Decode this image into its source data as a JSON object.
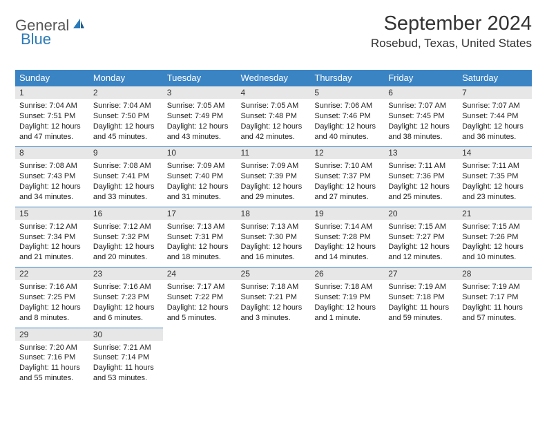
{
  "logo": {
    "general": "General",
    "blue": "Blue"
  },
  "title": "September 2024",
  "location": "Rosebud, Texas, United States",
  "day_headers": [
    "Sunday",
    "Monday",
    "Tuesday",
    "Wednesday",
    "Thursday",
    "Friday",
    "Saturday"
  ],
  "colors": {
    "header_bg": "#3b84c4",
    "header_text": "#ffffff",
    "daybar_bg": "#e7e7e7",
    "daybar_border": "#3b84c4",
    "logo_blue": "#2a7ab8",
    "logo_gray": "#555555"
  },
  "days": [
    {
      "num": "1",
      "sunrise": "Sunrise: 7:04 AM",
      "sunset": "Sunset: 7:51 PM",
      "daylight": "Daylight: 12 hours and 47 minutes."
    },
    {
      "num": "2",
      "sunrise": "Sunrise: 7:04 AM",
      "sunset": "Sunset: 7:50 PM",
      "daylight": "Daylight: 12 hours and 45 minutes."
    },
    {
      "num": "3",
      "sunrise": "Sunrise: 7:05 AM",
      "sunset": "Sunset: 7:49 PM",
      "daylight": "Daylight: 12 hours and 43 minutes."
    },
    {
      "num": "4",
      "sunrise": "Sunrise: 7:05 AM",
      "sunset": "Sunset: 7:48 PM",
      "daylight": "Daylight: 12 hours and 42 minutes."
    },
    {
      "num": "5",
      "sunrise": "Sunrise: 7:06 AM",
      "sunset": "Sunset: 7:46 PM",
      "daylight": "Daylight: 12 hours and 40 minutes."
    },
    {
      "num": "6",
      "sunrise": "Sunrise: 7:07 AM",
      "sunset": "Sunset: 7:45 PM",
      "daylight": "Daylight: 12 hours and 38 minutes."
    },
    {
      "num": "7",
      "sunrise": "Sunrise: 7:07 AM",
      "sunset": "Sunset: 7:44 PM",
      "daylight": "Daylight: 12 hours and 36 minutes."
    },
    {
      "num": "8",
      "sunrise": "Sunrise: 7:08 AM",
      "sunset": "Sunset: 7:43 PM",
      "daylight": "Daylight: 12 hours and 34 minutes."
    },
    {
      "num": "9",
      "sunrise": "Sunrise: 7:08 AM",
      "sunset": "Sunset: 7:41 PM",
      "daylight": "Daylight: 12 hours and 33 minutes."
    },
    {
      "num": "10",
      "sunrise": "Sunrise: 7:09 AM",
      "sunset": "Sunset: 7:40 PM",
      "daylight": "Daylight: 12 hours and 31 minutes."
    },
    {
      "num": "11",
      "sunrise": "Sunrise: 7:09 AM",
      "sunset": "Sunset: 7:39 PM",
      "daylight": "Daylight: 12 hours and 29 minutes."
    },
    {
      "num": "12",
      "sunrise": "Sunrise: 7:10 AM",
      "sunset": "Sunset: 7:37 PM",
      "daylight": "Daylight: 12 hours and 27 minutes."
    },
    {
      "num": "13",
      "sunrise": "Sunrise: 7:11 AM",
      "sunset": "Sunset: 7:36 PM",
      "daylight": "Daylight: 12 hours and 25 minutes."
    },
    {
      "num": "14",
      "sunrise": "Sunrise: 7:11 AM",
      "sunset": "Sunset: 7:35 PM",
      "daylight": "Daylight: 12 hours and 23 minutes."
    },
    {
      "num": "15",
      "sunrise": "Sunrise: 7:12 AM",
      "sunset": "Sunset: 7:34 PM",
      "daylight": "Daylight: 12 hours and 21 minutes."
    },
    {
      "num": "16",
      "sunrise": "Sunrise: 7:12 AM",
      "sunset": "Sunset: 7:32 PM",
      "daylight": "Daylight: 12 hours and 20 minutes."
    },
    {
      "num": "17",
      "sunrise": "Sunrise: 7:13 AM",
      "sunset": "Sunset: 7:31 PM",
      "daylight": "Daylight: 12 hours and 18 minutes."
    },
    {
      "num": "18",
      "sunrise": "Sunrise: 7:13 AM",
      "sunset": "Sunset: 7:30 PM",
      "daylight": "Daylight: 12 hours and 16 minutes."
    },
    {
      "num": "19",
      "sunrise": "Sunrise: 7:14 AM",
      "sunset": "Sunset: 7:28 PM",
      "daylight": "Daylight: 12 hours and 14 minutes."
    },
    {
      "num": "20",
      "sunrise": "Sunrise: 7:15 AM",
      "sunset": "Sunset: 7:27 PM",
      "daylight": "Daylight: 12 hours and 12 minutes."
    },
    {
      "num": "21",
      "sunrise": "Sunrise: 7:15 AM",
      "sunset": "Sunset: 7:26 PM",
      "daylight": "Daylight: 12 hours and 10 minutes."
    },
    {
      "num": "22",
      "sunrise": "Sunrise: 7:16 AM",
      "sunset": "Sunset: 7:25 PM",
      "daylight": "Daylight: 12 hours and 8 minutes."
    },
    {
      "num": "23",
      "sunrise": "Sunrise: 7:16 AM",
      "sunset": "Sunset: 7:23 PM",
      "daylight": "Daylight: 12 hours and 6 minutes."
    },
    {
      "num": "24",
      "sunrise": "Sunrise: 7:17 AM",
      "sunset": "Sunset: 7:22 PM",
      "daylight": "Daylight: 12 hours and 5 minutes."
    },
    {
      "num": "25",
      "sunrise": "Sunrise: 7:18 AM",
      "sunset": "Sunset: 7:21 PM",
      "daylight": "Daylight: 12 hours and 3 minutes."
    },
    {
      "num": "26",
      "sunrise": "Sunrise: 7:18 AM",
      "sunset": "Sunset: 7:19 PM",
      "daylight": "Daylight: 12 hours and 1 minute."
    },
    {
      "num": "27",
      "sunrise": "Sunrise: 7:19 AM",
      "sunset": "Sunset: 7:18 PM",
      "daylight": "Daylight: 11 hours and 59 minutes."
    },
    {
      "num": "28",
      "sunrise": "Sunrise: 7:19 AM",
      "sunset": "Sunset: 7:17 PM",
      "daylight": "Daylight: 11 hours and 57 minutes."
    },
    {
      "num": "29",
      "sunrise": "Sunrise: 7:20 AM",
      "sunset": "Sunset: 7:16 PM",
      "daylight": "Daylight: 11 hours and 55 minutes."
    },
    {
      "num": "30",
      "sunrise": "Sunrise: 7:21 AM",
      "sunset": "Sunset: 7:14 PM",
      "daylight": "Daylight: 11 hours and 53 minutes."
    }
  ]
}
